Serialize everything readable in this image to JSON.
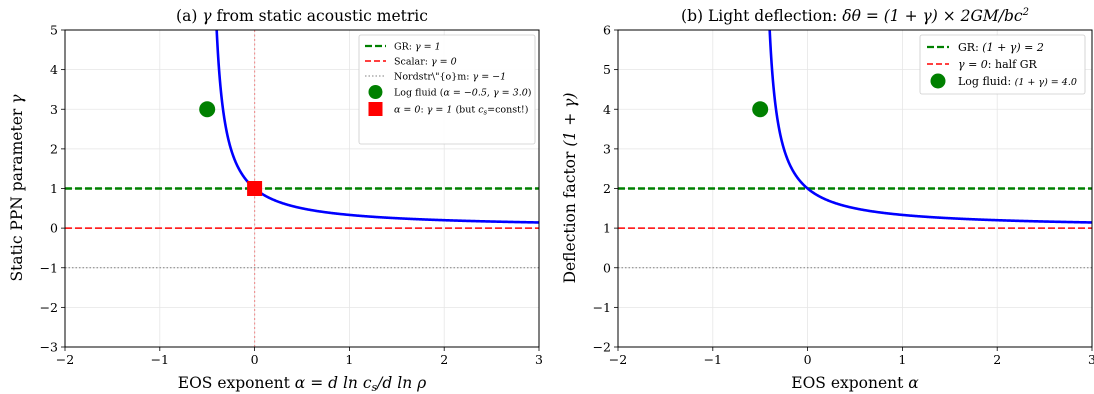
{
  "chart_data": [
    {
      "type": "line",
      "title": "(a) γ from static acoustic metric",
      "xlabel": "EOS exponent α = d ln c_s / d ln ρ",
      "ylabel": "Static PPN parameter γ",
      "xlim": [
        -2,
        3
      ],
      "ylim": [
        -3,
        5
      ],
      "xticks": [
        -2,
        -1,
        0,
        1,
        2,
        3
      ],
      "xtick_labels": [
        "−2",
        "−1",
        "0",
        "1",
        "2",
        "3"
      ],
      "yticks": [
        -3,
        -2,
        -1,
        0,
        1,
        2,
        3,
        4,
        5
      ],
      "ytick_labels": [
        "−3",
        "−2",
        "−1",
        "0",
        "1",
        "2",
        "3",
        "4",
        "5"
      ],
      "grid": true,
      "legend_position": "top-right",
      "series": [
        {
          "name": "GR: γ = 1",
          "kind": "hline",
          "y": 1,
          "color": "#008000",
          "style": "dashed"
        },
        {
          "name": "Scalar: γ = 0",
          "kind": "hline",
          "y": 0,
          "color": "#ff0000",
          "style": "dashed"
        },
        {
          "name": "Nordstr\\\"{o}m: γ = −1",
          "kind": "hline",
          "y": -1,
          "color": "#808080",
          "style": "dotted"
        },
        {
          "name": "Log fluid (α = −0.5, γ = 3.0)",
          "kind": "point",
          "x": -0.5,
          "y": 3.0,
          "color": "#008000",
          "marker": "circle"
        },
        {
          "name": "α = 0: γ = 1 (but c_s=const!)",
          "kind": "point",
          "x": 0,
          "y": 1,
          "color": "#ff0000",
          "marker": "square"
        },
        {
          "kind": "curve",
          "formula": "gamma = 1/(1+2*alpha)",
          "color": "#0000ff",
          "x": [
            -0.2,
            -0.15,
            -0.1,
            -0.05,
            0,
            0.25,
            0.5,
            1,
            1.5,
            2,
            2.5,
            3
          ],
          "y": [
            1.667,
            1.429,
            1.25,
            1.111,
            1.0,
            0.667,
            0.5,
            0.333,
            0.25,
            0.2,
            0.167,
            0.143
          ]
        },
        {
          "kind": "vline",
          "x": 0,
          "color": "#f08080",
          "style": "dotted"
        }
      ]
    },
    {
      "type": "line",
      "title": "(b) Light deflection: δθ = (1+γ) × 2GM/bc²",
      "xlabel": "EOS exponent α",
      "ylabel": "Deflection factor (1+γ)",
      "xlim": [
        -2,
        3
      ],
      "ylim": [
        -2,
        6
      ],
      "xticks": [
        -2,
        -1,
        0,
        1,
        2,
        3
      ],
      "xtick_labels": [
        "−2",
        "−1",
        "0",
        "1",
        "2",
        "3"
      ],
      "yticks": [
        -2,
        -1,
        0,
        1,
        2,
        3,
        4,
        5,
        6
      ],
      "ytick_labels": [
        "−2",
        "−1",
        "0",
        "1",
        "2",
        "3",
        "4",
        "5",
        "6"
      ],
      "grid": true,
      "legend_position": "top-right",
      "series": [
        {
          "name": "GR: (1+γ) = 2",
          "kind": "hline",
          "y": 2,
          "color": "#008000",
          "style": "dashed"
        },
        {
          "name": "γ = 0: half GR",
          "kind": "hline",
          "y": 1,
          "color": "#ff0000",
          "style": "dashed"
        },
        {
          "name": "Log fluid: (1+γ) = 4.0",
          "kind": "point",
          "x": -0.5,
          "y": 4.0,
          "color": "#008000",
          "marker": "circle"
        },
        {
          "kind": "hline",
          "y": 0,
          "color": "#808080",
          "style": "dotted"
        },
        {
          "kind": "curve",
          "formula": "1+gamma = 1 + 1/(1+2*alpha)",
          "color": "#0000ff",
          "x": [
            -0.2,
            -0.1,
            0,
            0.5,
            1,
            2,
            3
          ],
          "y": [
            2.667,
            2.25,
            2.0,
            1.5,
            1.333,
            1.2,
            1.143
          ]
        }
      ]
    }
  ],
  "text": {
    "a_title_pre": "(a) ",
    "a_title_gamma": "γ",
    "a_title_post": " from static acoustic metric",
    "a_xlabel_pre": "EOS exponent ",
    "a_xlabel_math": "α = d ln c",
    "a_xlabel_sub": "s",
    "a_xlabel_math2": "/d ln ρ",
    "a_ylabel_pre": "Static PPN parameter ",
    "a_ylabel_gamma": "γ",
    "b_title_pre": "(b) Light deflection: ",
    "b_title_math": "δθ = (1 + γ) × 2GM/bc",
    "b_title_sup": "2",
    "b_xlabel_pre": "EOS exponent ",
    "b_xlabel_math": "α",
    "b_ylabel_pre": "Deflection factor ",
    "b_ylabel_math": "(1 + γ)",
    "leg_a1_pre": "GR: ",
    "leg_a1_math": "γ = 1",
    "leg_a2_pre": "Scalar: ",
    "leg_a2_math": "γ = 0",
    "leg_a3_pre": "Nordstr\\\"{o}m: ",
    "leg_a3_math": "γ = −1",
    "leg_a4_pre": "Log fluid (",
    "leg_a4_math1": "α = −0.5",
    "leg_a4_mid": ", ",
    "leg_a4_math2": "γ = 3.0",
    "leg_a4_post": ")",
    "leg_a5_math": "α = 0",
    "leg_a5_mid": ": ",
    "leg_a5_math2": "γ = 1",
    "leg_a5_post1": " (but ",
    "leg_a5_cs": "c",
    "leg_a5_cs_sub": "s",
    "leg_a5_post2": "=const!)",
    "leg_b1_pre": "GR: ",
    "leg_b1_math": "(1 + γ) = 2",
    "leg_b2_math": "γ = 0",
    "leg_b2_post": ": half GR",
    "leg_b3_pre": "Log fluid: ",
    "leg_b3_math": "(1 + γ) = 4.0"
  }
}
